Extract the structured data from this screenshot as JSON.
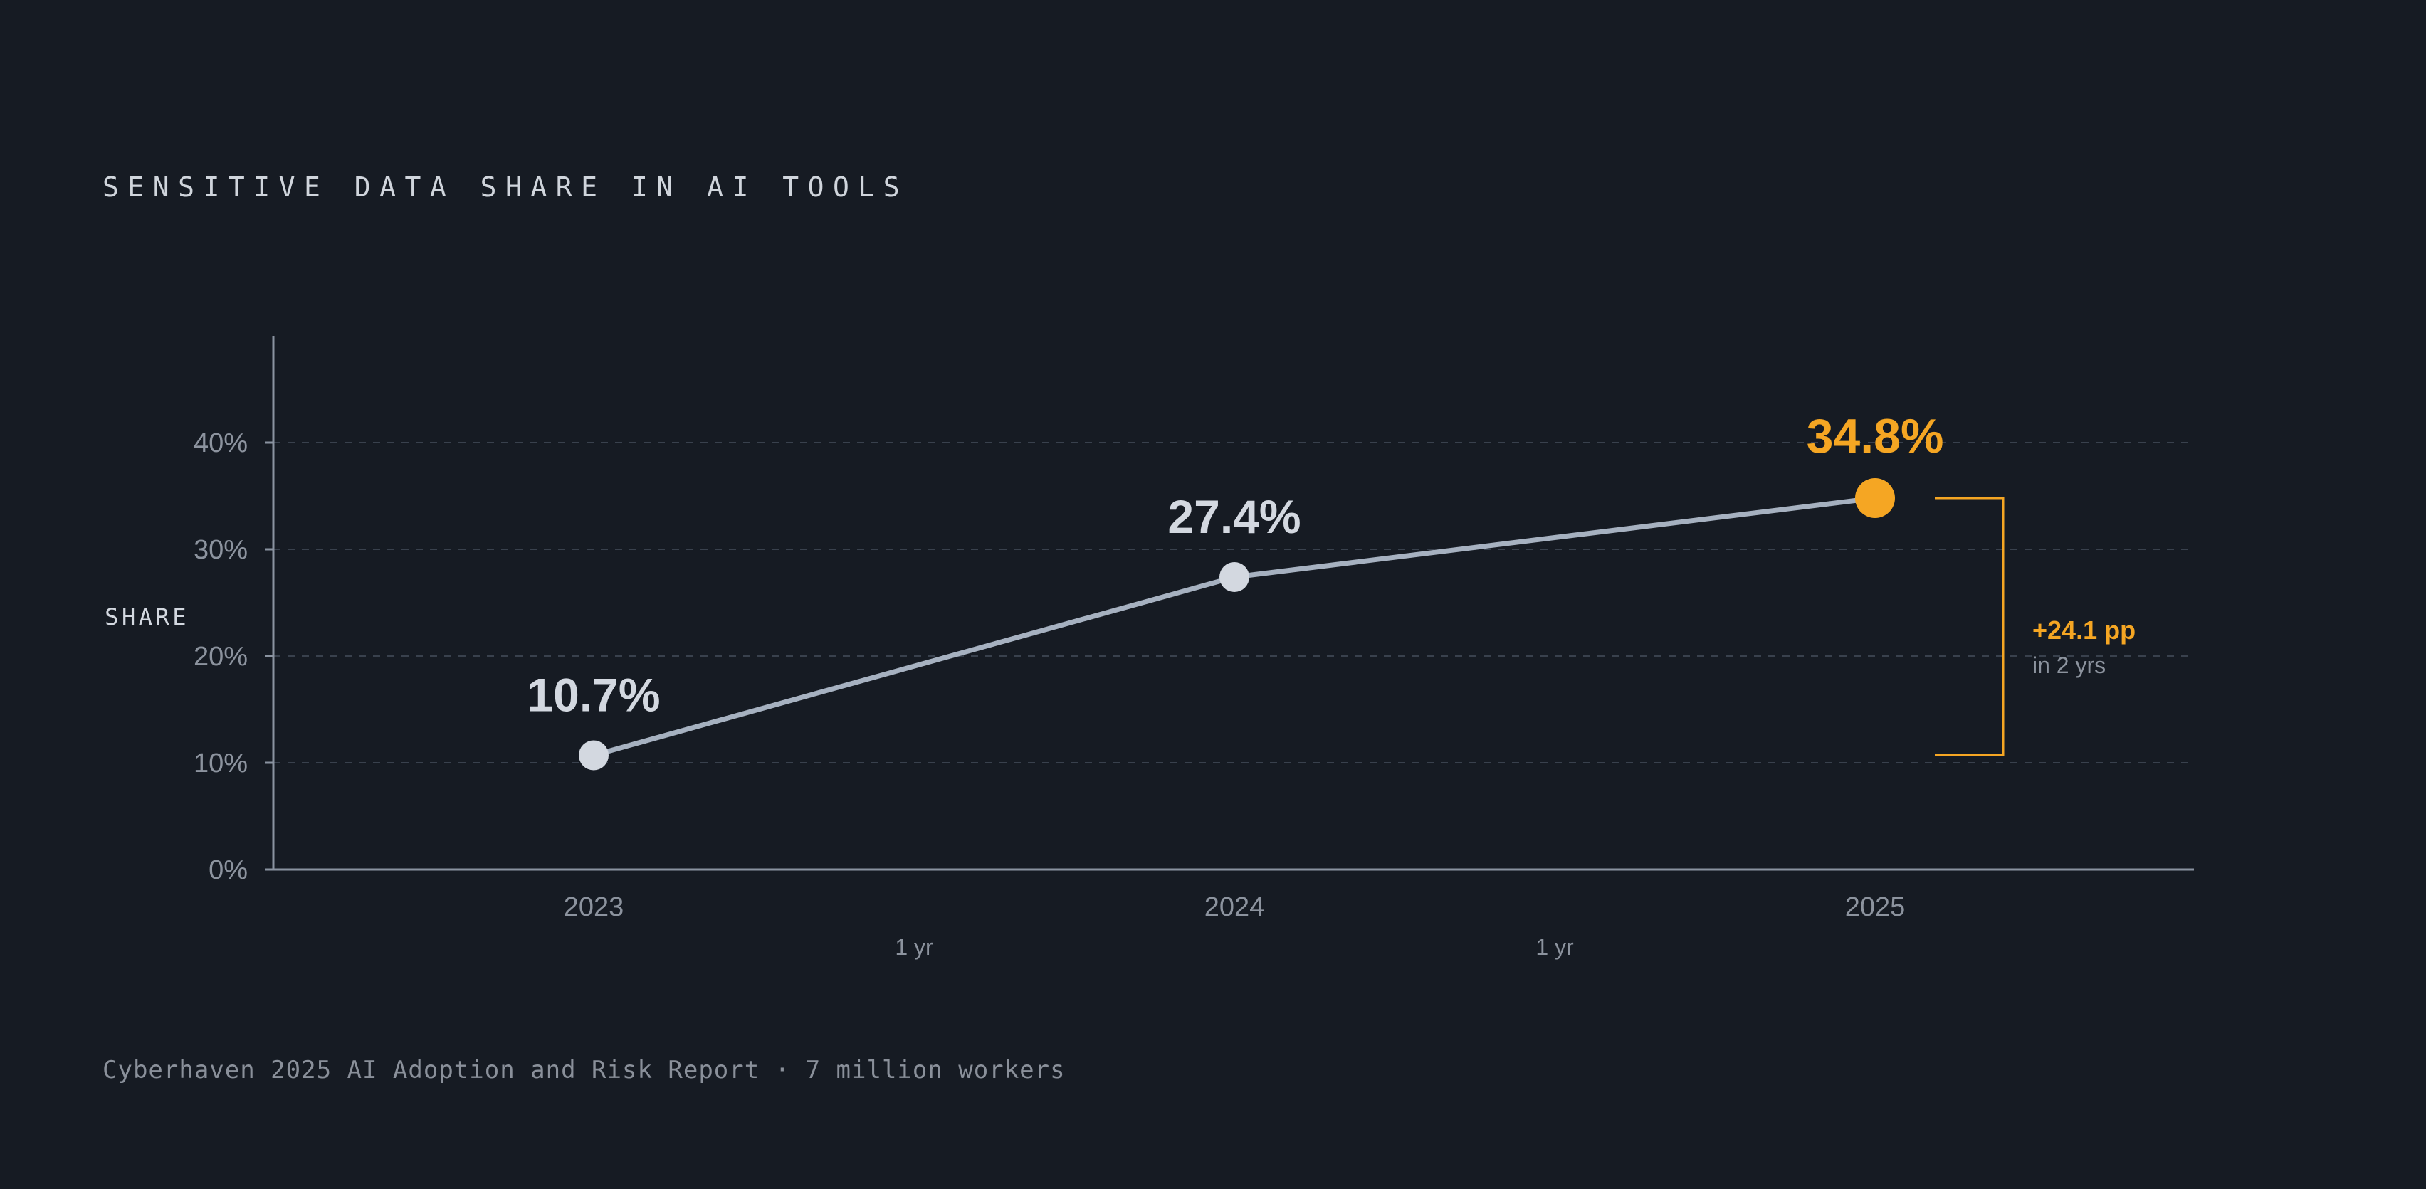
{
  "colors": {
    "background": "#161b23",
    "line": "#a6b1c0",
    "point": "#d3d8e0",
    "highlight": "#f5a623",
    "axis": "#8a93a0",
    "grid": "#39414d",
    "tick_text": "#8c939e",
    "label_text": "#d3d8e0",
    "title_text": "#d0d5dc",
    "source_text": "#8a909a"
  },
  "chart_data": {
    "type": "line",
    "title": "SENSITIVE DATA SHARE IN AI TOOLS",
    "ylabel": "SHARE",
    "xlabel": "",
    "categories": [
      "2023",
      "2024",
      "2025"
    ],
    "series": [
      {
        "values": [
          10.7,
          27.4,
          34.8
        ]
      }
    ],
    "data_labels": [
      "10.7%",
      "27.4%",
      "34.8%"
    ],
    "highlight_index": 2,
    "ylim": [
      0,
      50
    ],
    "yticks": [
      {
        "value": 0,
        "label": "0%"
      },
      {
        "value": 10,
        "label": "10%"
      },
      {
        "value": 20,
        "label": "20%"
      },
      {
        "value": 30,
        "label": "30%"
      },
      {
        "value": 40,
        "label": "40%"
      }
    ],
    "grid": true,
    "intervals": [
      "1 yr",
      "1 yr"
    ],
    "change_annotation": {
      "from_index": 0,
      "to_index": 2,
      "value": "+24.1 pp",
      "note": "in 2 yrs"
    },
    "source": "Cyberhaven 2025 AI Adoption and Risk Report · 7 million workers"
  }
}
